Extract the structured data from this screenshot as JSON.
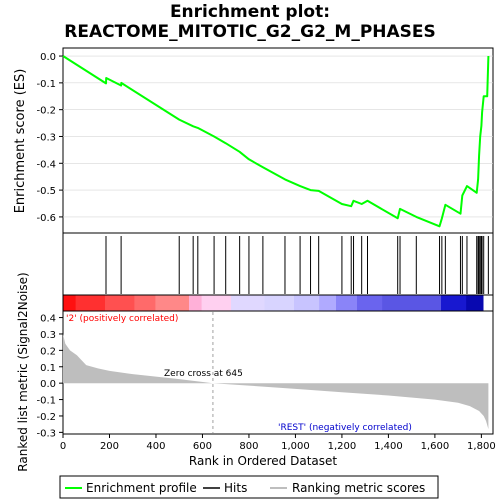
{
  "title_line1": "Enrichment plot:",
  "title_line2": "REACTOME_MITOTIC_G2_G2_M_PHASES",
  "colors": {
    "es_line": "#00ff00",
    "hits": "#000000",
    "metric_fill": "#bebebe",
    "pos_label": "#ff0000",
    "neg_label": "#0000cd",
    "zero_line": "#a0a0a0"
  },
  "chart_data": {
    "type": "line",
    "xlabel": "Rank in Ordered Dataset",
    "xlim": [
      0,
      1850
    ],
    "x_ticks": [
      0,
      200,
      400,
      600,
      800,
      1000,
      1200,
      1400,
      1600,
      1800
    ],
    "x_tick_labels": [
      "0",
      "200",
      "400",
      "600",
      "800",
      "1,000",
      "1,200",
      "1,400",
      "1,600",
      "1,800"
    ],
    "es_panel": {
      "ylabel": "Enrichment score (ES)",
      "ylim": [
        -0.66,
        0.03
      ],
      "y_ticks": [
        0.0,
        -0.1,
        -0.2,
        -0.3,
        -0.4,
        -0.5,
        -0.6
      ],
      "y_tick_labels": [
        "0.0",
        "-0.1",
        "-0.2",
        "-0.3",
        "-0.4",
        "-0.5",
        "-0.6"
      ],
      "series": [
        {
          "x": [
            0,
            185,
            186,
            250,
            251,
            500,
            560,
            580,
            650,
            700,
            760,
            800,
            860,
            955,
            1020,
            1065,
            1100,
            1200,
            1240,
            1250,
            1285,
            1310,
            1440,
            1450,
            1520,
            1620,
            1630,
            1645,
            1710,
            1718,
            1738,
            1780,
            1786,
            1790,
            1795,
            1800,
            1803,
            1810,
            1825,
            1830
          ],
          "y": [
            0.0,
            -0.102,
            -0.082,
            -0.11,
            -0.1,
            -0.237,
            -0.262,
            -0.268,
            -0.3,
            -0.325,
            -0.357,
            -0.385,
            -0.415,
            -0.46,
            -0.485,
            -0.5,
            -0.503,
            -0.552,
            -0.56,
            -0.54,
            -0.552,
            -0.54,
            -0.605,
            -0.57,
            -0.6,
            -0.635,
            -0.605,
            -0.555,
            -0.588,
            -0.52,
            -0.485,
            -0.51,
            -0.46,
            -0.37,
            -0.3,
            -0.26,
            -0.21,
            -0.15,
            -0.15,
            0.0
          ]
        }
      ]
    },
    "hits_panel": {
      "hit_ranks": [
        185,
        250,
        500,
        560,
        580,
        650,
        700,
        760,
        800,
        860,
        955,
        1020,
        1065,
        1100,
        1200,
        1240,
        1250,
        1285,
        1310,
        1440,
        1450,
        1520,
        1620,
        1630,
        1645,
        1710,
        1718,
        1738,
        1780,
        1786,
        1790,
        1795,
        1800,
        1803,
        1810,
        1830
      ]
    },
    "metric_panel": {
      "ylabel": "Ranked list metric (Signal2Noise)",
      "ylim": [
        -0.31,
        0.44
      ],
      "y_ticks": [
        0.4,
        0.3,
        0.2,
        0.1,
        0.0,
        -0.1,
        -0.2,
        -0.3
      ],
      "y_tick_labels": [
        "0.4",
        "0.3",
        "0.2",
        "0.1",
        "0.0",
        "-0.1",
        "-0.2",
        "-0.3"
      ],
      "x": [
        0,
        10,
        30,
        60,
        80,
        100,
        150,
        200,
        300,
        400,
        500,
        645,
        800,
        1000,
        1200,
        1400,
        1600,
        1700,
        1750,
        1790,
        1810,
        1820,
        1830
      ],
      "y": [
        0.3,
        0.24,
        0.2,
        0.17,
        0.14,
        0.11,
        0.09,
        0.075,
        0.055,
        0.04,
        0.025,
        0.0,
        -0.015,
        -0.035,
        -0.055,
        -0.075,
        -0.1,
        -0.12,
        -0.14,
        -0.17,
        -0.2,
        -0.23,
        -0.28
      ],
      "zero_cross_rank": 645,
      "zero_cross_label": "Zero cross at 645",
      "pos_label": "'2' (positively correlated)",
      "neg_label": "'REST' (negatively correlated)"
    },
    "legend": {
      "placement": "bottom",
      "entries": [
        "Enrichment profile",
        "Hits",
        "Ranking metric scores"
      ]
    }
  }
}
